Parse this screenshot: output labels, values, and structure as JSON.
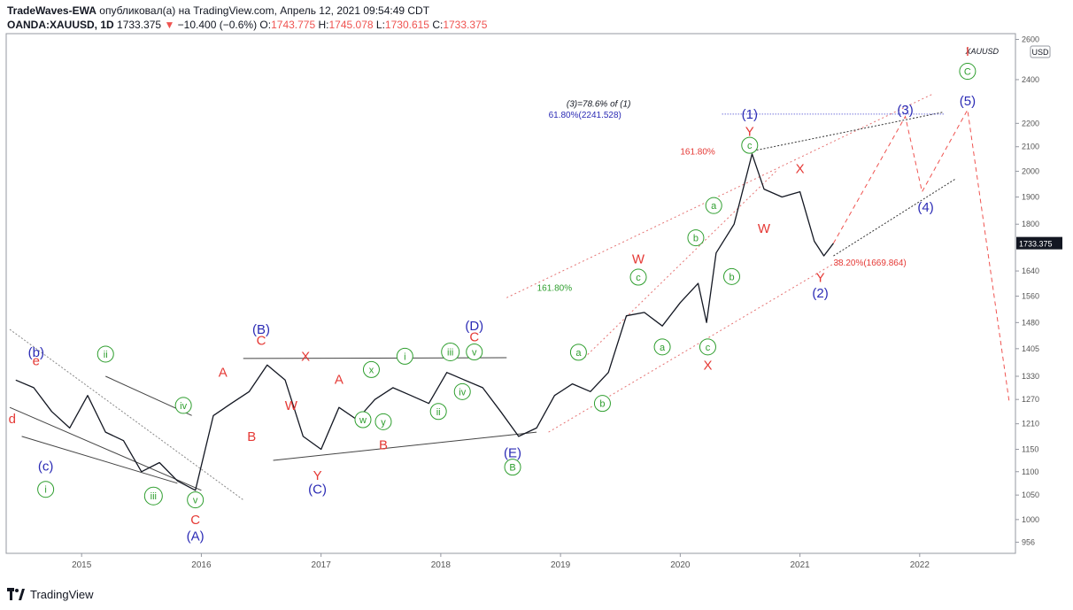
{
  "header": {
    "author": "TradeWaves-EWA",
    "published": "опубликовал(а) на TradingView.com, Апрель 12, 2021 09:54:49 CDT",
    "symbol": "OANDA:XAUUSD, 1D",
    "last": "1733.375",
    "change": "−10.400 (−0.6%)",
    "o_label": "O:",
    "o_val": "1743.775",
    "h_label": "H:",
    "h_val": "1745.078",
    "l_label": "L:",
    "l_val": "1730.615",
    "c_label": "C:",
    "c_val": "1733.375"
  },
  "footer": {
    "brand": "TradingView"
  },
  "colors": {
    "red": "#e53935",
    "blue": "#2b2bb5",
    "green": "#2e9e2e",
    "price": "#131722",
    "axis": "#555555"
  },
  "chart_data": {
    "type": "line",
    "symbol_watermark": "XAUUSD",
    "currency": "USD",
    "x_axis": {
      "ticks": [
        "2015",
        "2016",
        "2017",
        "2018",
        "2019",
        "2020",
        "2021",
        "2022"
      ]
    },
    "y_axis": {
      "scale": "log",
      "ticks": [
        "2600",
        "2400",
        "2200",
        "2100",
        "2000",
        "1900",
        "1800",
        "1640",
        "1560",
        "1480",
        "1405",
        "1330",
        "1270",
        "1210",
        "1150",
        "1100",
        "1050",
        "1000",
        "956"
      ],
      "last_price_label": "1733.375"
    },
    "series": [
      {
        "x": [
          "2014.45",
          "2014.60",
          "2014.75",
          "2014.90",
          "2015.05",
          "2015.20",
          "2015.35",
          "2015.50",
          "2015.65",
          "2015.80",
          "2015.95",
          "2016.10",
          "2016.25",
          "2016.40",
          "2016.55",
          "2016.70",
          "2016.85",
          "2017.00",
          "2017.15",
          "2017.30",
          "2017.45",
          "2017.60",
          "2017.75",
          "2017.90",
          "2018.05",
          "2018.20",
          "2018.35",
          "2018.50",
          "2018.65",
          "2018.80",
          "2018.95",
          "2019.10",
          "2019.25",
          "2019.40",
          "2019.55",
          "2019.70",
          "2019.85",
          "2020.00",
          "2020.15",
          "2020.22",
          "2020.30",
          "2020.45",
          "2020.60",
          "2020.70",
          "2020.85",
          "2021.00",
          "2021.12",
          "2021.20",
          "2021.28"
        ],
        "y": [
          1320,
          1300,
          1240,
          1200,
          1280,
          1190,
          1170,
          1100,
          1120,
          1080,
          1060,
          1230,
          1260,
          1290,
          1360,
          1320,
          1180,
          1150,
          1250,
          1220,
          1270,
          1300,
          1280,
          1260,
          1340,
          1320,
          1300,
          1240,
          1180,
          1200,
          1280,
          1310,
          1290,
          1340,
          1500,
          1510,
          1470,
          1540,
          1600,
          1480,
          1700,
          1800,
          2070,
          1930,
          1900,
          1920,
          1740,
          1690,
          1733
        ]
      }
    ],
    "wave_labels": [
      {
        "t": "(b)",
        "x": 2014.62,
        "y": 1395,
        "c": "blue"
      },
      {
        "t": "e",
        "x": 2014.62,
        "y": 1372,
        "c": "red"
      },
      {
        "t": "d",
        "x": 2014.42,
        "y": 1222,
        "c": "red"
      },
      {
        "t": "(c)",
        "x": 2014.7,
        "y": 1112,
        "c": "blue"
      },
      {
        "t": "i",
        "x": 2014.7,
        "y": 1062,
        "c": "green",
        "circle": true
      },
      {
        "t": "ii",
        "x": 2015.2,
        "y": 1390,
        "c": "green",
        "circle": true
      },
      {
        "t": "iii",
        "x": 2015.6,
        "y": 1048,
        "c": "green",
        "circle": true
      },
      {
        "t": "iv",
        "x": 2015.85,
        "y": 1255,
        "c": "green",
        "circle": true
      },
      {
        "t": "v",
        "x": 2015.95,
        "y": 1040,
        "c": "green",
        "circle": true
      },
      {
        "t": "C",
        "x": 2015.95,
        "y": 1000,
        "c": "red"
      },
      {
        "t": "(A)",
        "x": 2015.95,
        "y": 968,
        "c": "blue"
      },
      {
        "t": "A",
        "x": 2016.18,
        "y": 1340,
        "c": "red"
      },
      {
        "t": "B",
        "x": 2016.42,
        "y": 1180,
        "c": "red"
      },
      {
        "t": "(B)",
        "x": 2016.5,
        "y": 1460,
        "c": "blue"
      },
      {
        "t": "C",
        "x": 2016.5,
        "y": 1428,
        "c": "red"
      },
      {
        "t": "X",
        "x": 2016.87,
        "y": 1384,
        "c": "red"
      },
      {
        "t": "W",
        "x": 2016.75,
        "y": 1255,
        "c": "red"
      },
      {
        "t": "Y",
        "x": 2016.97,
        "y": 1092,
        "c": "red"
      },
      {
        "t": "(C)",
        "x": 2016.97,
        "y": 1062,
        "c": "blue"
      },
      {
        "t": "A",
        "x": 2017.15,
        "y": 1322,
        "c": "red"
      },
      {
        "t": "x",
        "x": 2017.42,
        "y": 1348,
        "c": "green",
        "circle": true
      },
      {
        "t": "w",
        "x": 2017.35,
        "y": 1220,
        "c": "green",
        "circle": true
      },
      {
        "t": "y",
        "x": 2017.52,
        "y": 1215,
        "c": "green",
        "circle": true
      },
      {
        "t": "B",
        "x": 2017.52,
        "y": 1160,
        "c": "red"
      },
      {
        "t": "i",
        "x": 2017.7,
        "y": 1384,
        "c": "green",
        "circle": true
      },
      {
        "t": "ii",
        "x": 2017.98,
        "y": 1240,
        "c": "green",
        "circle": true
      },
      {
        "t": "iii",
        "x": 2018.08,
        "y": 1396,
        "c": "green",
        "circle": true
      },
      {
        "t": "iv",
        "x": 2018.18,
        "y": 1290,
        "c": "green",
        "circle": true
      },
      {
        "t": "v",
        "x": 2018.28,
        "y": 1396,
        "c": "green",
        "circle": true
      },
      {
        "t": "(D)",
        "x": 2018.28,
        "y": 1470,
        "c": "blue"
      },
      {
        "t": "C",
        "x": 2018.28,
        "y": 1438,
        "c": "red"
      },
      {
        "t": "(E)",
        "x": 2018.6,
        "y": 1142,
        "c": "blue"
      },
      {
        "t": "B",
        "x": 2018.6,
        "y": 1110,
        "c": "green",
        "circle": true
      },
      {
        "t": "b",
        "x": 2019.35,
        "y": 1260,
        "c": "green",
        "circle": true
      },
      {
        "t": "a",
        "x": 2019.15,
        "y": 1395,
        "c": "green",
        "circle": true
      },
      {
        "t": "161.80%",
        "x": 2018.95,
        "y": 1588,
        "c": "green",
        "fib": true
      },
      {
        "t": "c",
        "x": 2019.65,
        "y": 1620,
        "c": "green",
        "circle": true
      },
      {
        "t": "W",
        "x": 2019.65,
        "y": 1680,
        "c": "red"
      },
      {
        "t": "a",
        "x": 2019.85,
        "y": 1410,
        "c": "green",
        "circle": true
      },
      {
        "t": "c",
        "x": 2020.23,
        "y": 1410,
        "c": "green",
        "circle": true
      },
      {
        "t": "X",
        "x": 2020.23,
        "y": 1360,
        "c": "red"
      },
      {
        "t": "a",
        "x": 2020.28,
        "y": 1868,
        "c": "green",
        "circle": true
      },
      {
        "t": "b",
        "x": 2020.13,
        "y": 1752,
        "c": "green",
        "circle": true
      },
      {
        "t": "b",
        "x": 2020.43,
        "y": 1622,
        "c": "green",
        "circle": true
      },
      {
        "t": "c",
        "x": 2020.58,
        "y": 2106,
        "c": "green",
        "circle": true
      },
      {
        "t": "Y",
        "x": 2020.58,
        "y": 2164,
        "c": "red"
      },
      {
        "t": "(1)",
        "x": 2020.58,
        "y": 2240,
        "c": "blue"
      },
      {
        "t": "X",
        "x": 2021.0,
        "y": 2010,
        "c": "red"
      },
      {
        "t": "W",
        "x": 2020.7,
        "y": 1785,
        "c": "red"
      },
      {
        "t": "Y",
        "x": 2021.17,
        "y": 1618,
        "c": "red"
      },
      {
        "t": "(2)",
        "x": 2021.17,
        "y": 1570,
        "c": "blue"
      },
      {
        "t": "(3)",
        "x": 2021.88,
        "y": 2260,
        "c": "blue"
      },
      {
        "t": "(4)",
        "x": 2022.05,
        "y": 1862,
        "c": "blue"
      },
      {
        "t": "I",
        "x": 2022.4,
        "y": 2540,
        "c": "red"
      },
      {
        "t": "C",
        "x": 2022.4,
        "y": 2440,
        "c": "green",
        "circle": true
      },
      {
        "t": "(5)",
        "x": 2022.4,
        "y": 2300,
        "c": "blue"
      }
    ],
    "fib_labels": [
      {
        "t": "(3)=78.6% of (1)",
        "x": 2019.05,
        "y": 2290,
        "c": "black",
        "italic": true
      },
      {
        "t": "61.80%(2241.528)",
        "x": 2018.9,
        "y": 2241,
        "c": "blue"
      },
      {
        "t": "161.80%",
        "x": 2020.0,
        "y": 2082,
        "c": "red"
      },
      {
        "t": "38.20%(1669.864)",
        "x": 2021.28,
        "y": 1670,
        "c": "red"
      }
    ]
  }
}
